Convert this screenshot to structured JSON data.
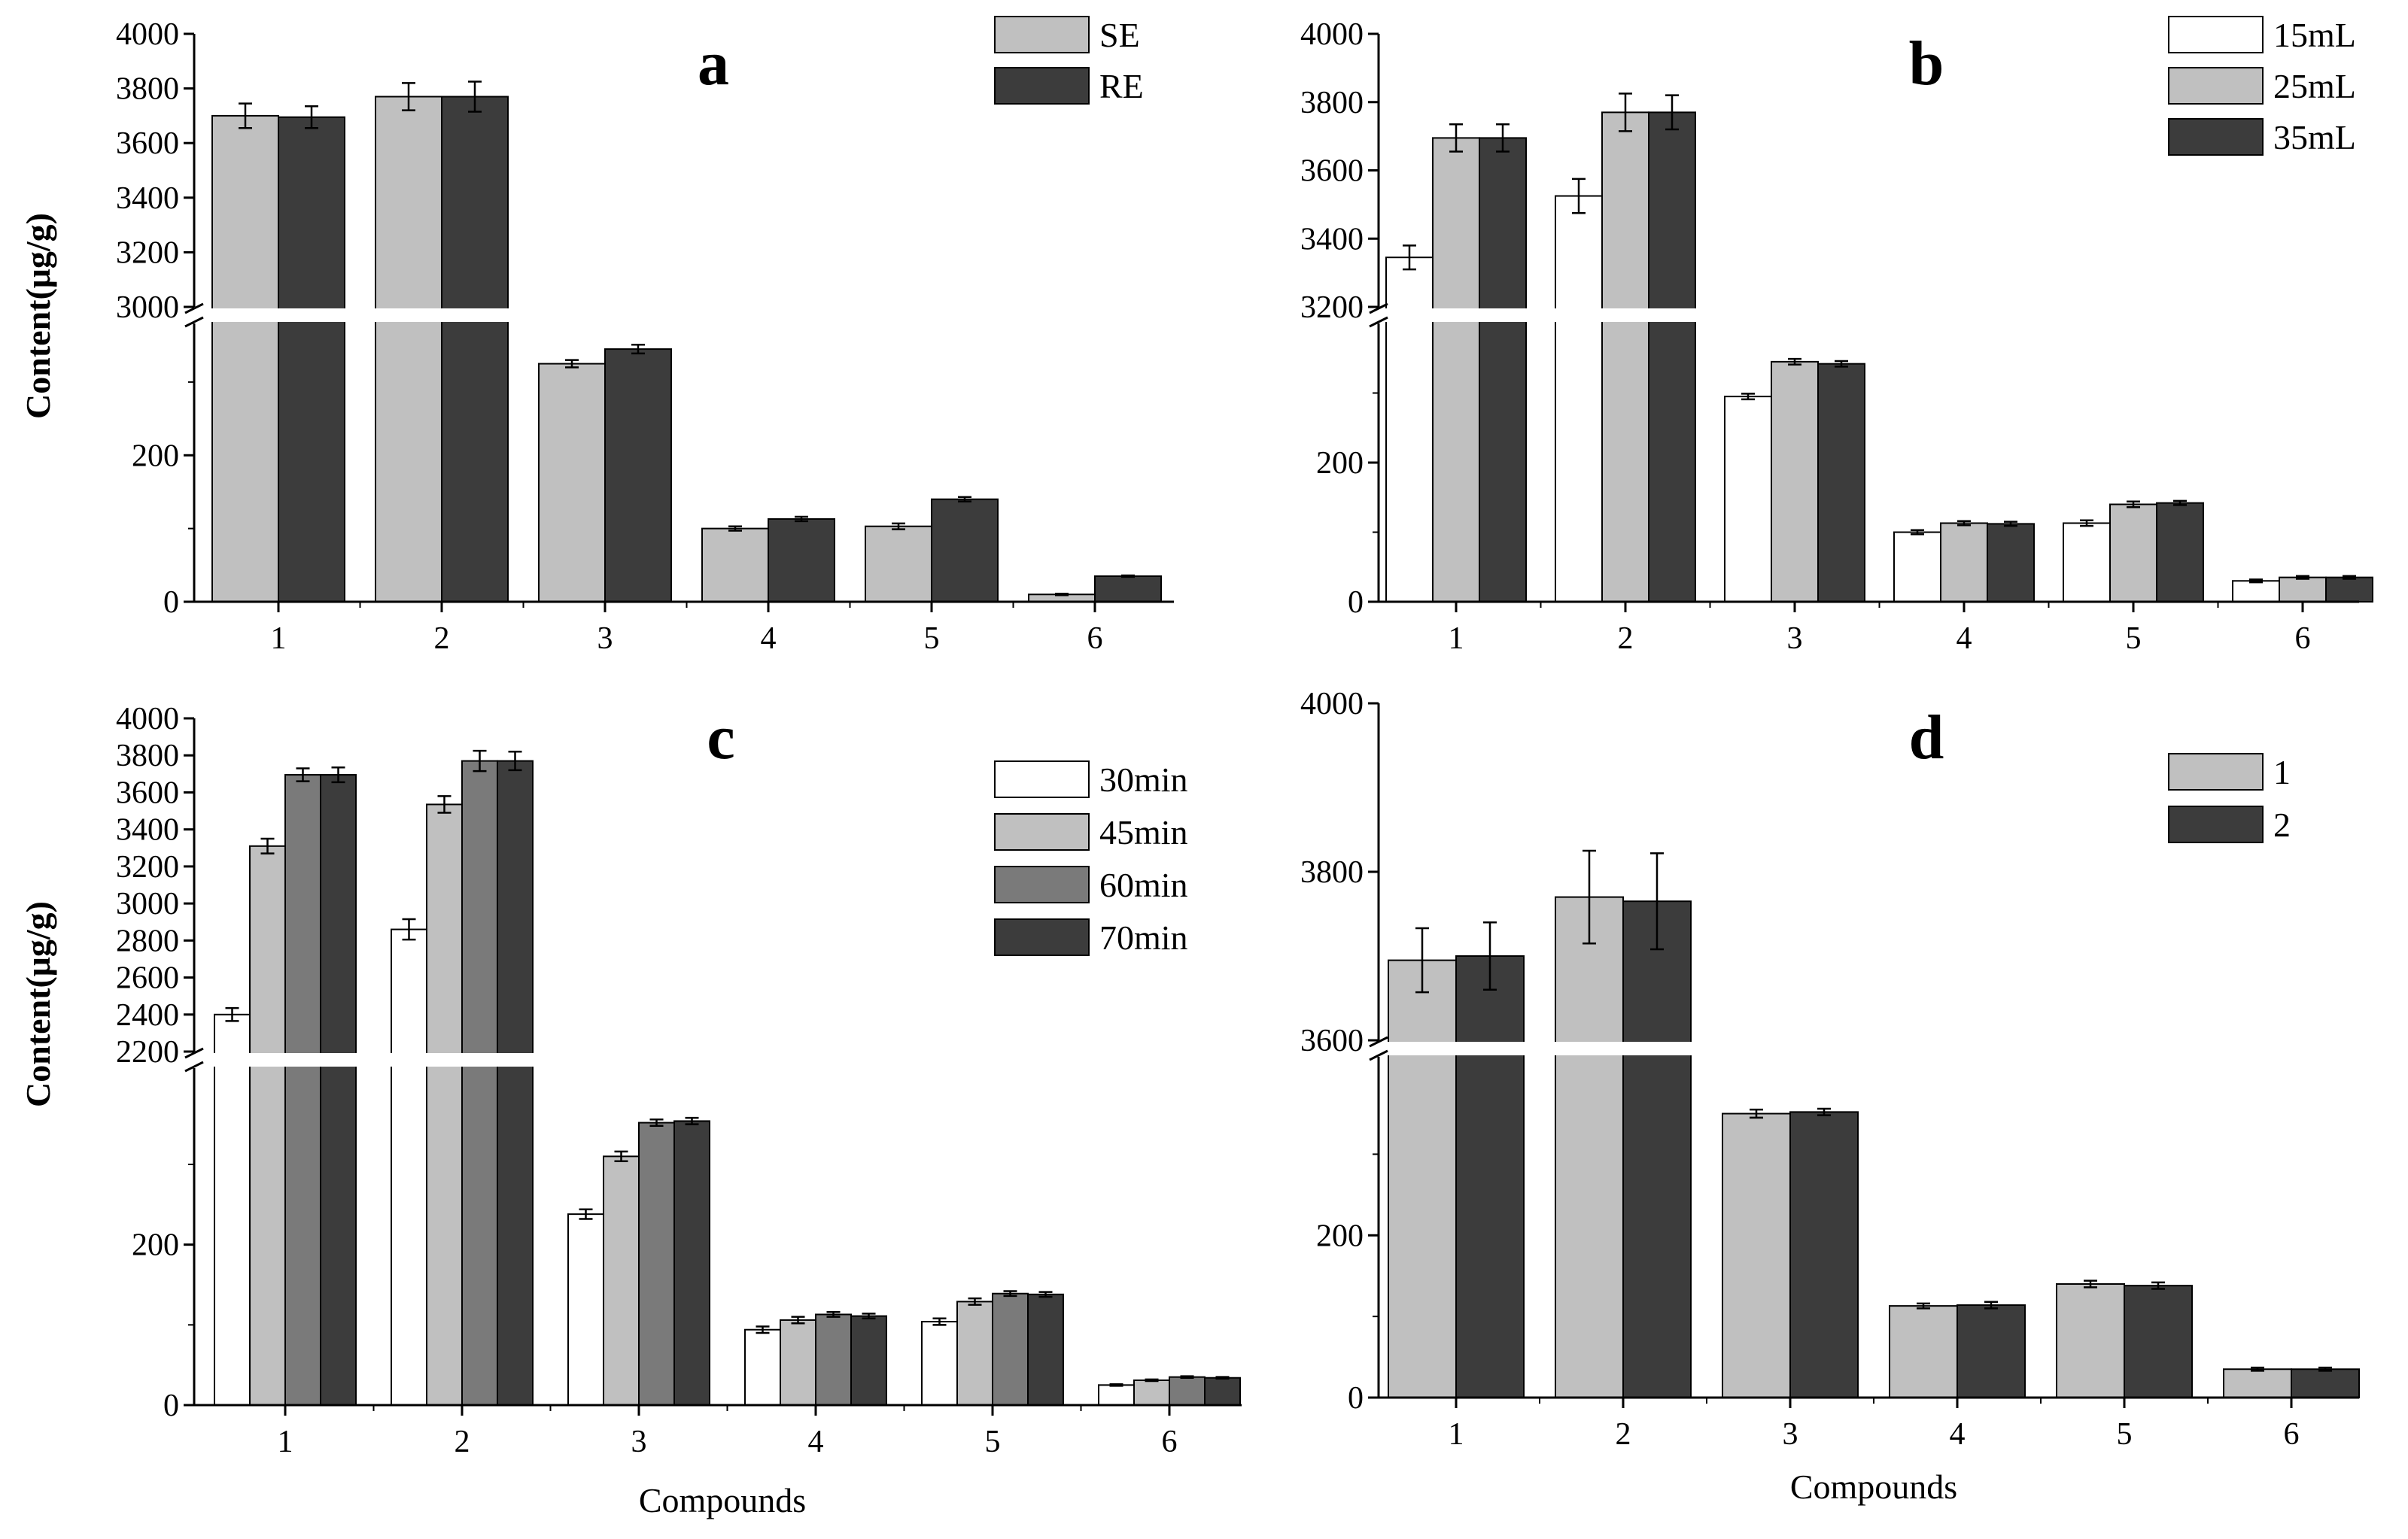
{
  "colors": {
    "white": "#ffffff",
    "light_gray": "#c0c0c0",
    "mid_gray": "#7a7a7a",
    "dark_gray": "#3c3c3c",
    "axis": "#000000"
  },
  "chart_data": [
    {
      "type": "bar",
      "panel": "a",
      "title": "a",
      "xlabel": "",
      "ylabel": "Content(μg/g)",
      "categories": [
        "1",
        "2",
        "3",
        "4",
        "5",
        "6"
      ],
      "axis_break": true,
      "lower_ylim": [
        0,
        380
      ],
      "upper_ylim": [
        3000,
        4000
      ],
      "lower_ticks": [
        0,
        200
      ],
      "upper_ticks": [
        3000,
        3200,
        3400,
        3600,
        3800,
        4000
      ],
      "series": [
        {
          "name": "SE",
          "color": "#c0c0c0",
          "values": [
            3700,
            3770,
            325,
            100,
            103,
            10
          ],
          "errors": [
            45,
            50,
            5,
            3,
            4,
            1
          ]
        },
        {
          "name": "RE",
          "color": "#3c3c3c",
          "values": [
            3695,
            3770,
            345,
            113,
            140,
            35
          ],
          "errors": [
            40,
            55,
            6,
            3,
            3,
            1
          ]
        }
      ]
    },
    {
      "type": "bar",
      "panel": "b",
      "title": "b",
      "xlabel": "",
      "ylabel": "",
      "categories": [
        "1",
        "2",
        "3",
        "4",
        "5",
        "6"
      ],
      "axis_break": true,
      "lower_ylim": [
        0,
        400
      ],
      "upper_ylim": [
        3200,
        4000
      ],
      "lower_ticks": [
        0,
        200
      ],
      "upper_ticks": [
        3200,
        3400,
        3600,
        3800,
        4000
      ],
      "series": [
        {
          "name": "15mL",
          "color": "#ffffff",
          "values": [
            3345,
            3525,
            295,
            100,
            113,
            30
          ],
          "errors": [
            35,
            50,
            4,
            3,
            4,
            2
          ]
        },
        {
          "name": "25mL",
          "color": "#c0c0c0",
          "values": [
            3695,
            3770,
            345,
            113,
            140,
            35
          ],
          "errors": [
            40,
            55,
            4,
            3,
            4,
            2
          ]
        },
        {
          "name": "35mL",
          "color": "#3c3c3c",
          "values": [
            3695,
            3770,
            342,
            112,
            142,
            35
          ],
          "errors": [
            40,
            50,
            4,
            3,
            3,
            2
          ]
        }
      ]
    },
    {
      "type": "bar",
      "panel": "c",
      "title": "c",
      "xlabel": "Compounds",
      "ylabel": "Content(μg/g)",
      "categories": [
        "1",
        "2",
        "3",
        "4",
        "5",
        "6"
      ],
      "axis_break": true,
      "lower_ylim": [
        0,
        420
      ],
      "upper_ylim": [
        2200,
        4000
      ],
      "lower_ticks": [
        0,
        200
      ],
      "upper_ticks": [
        2200,
        2400,
        2600,
        2800,
        3000,
        3200,
        3400,
        3600,
        3800,
        4000
      ],
      "series": [
        {
          "name": "30min",
          "color": "#ffffff",
          "values": [
            2400,
            2860,
            238,
            94,
            104,
            25
          ],
          "errors": [
            35,
            55,
            6,
            4,
            4,
            1
          ]
        },
        {
          "name": "45min",
          "color": "#c0c0c0",
          "values": [
            3310,
            3535,
            310,
            106,
            129,
            31
          ],
          "errors": [
            40,
            45,
            6,
            4,
            4,
            1
          ]
        },
        {
          "name": "60min",
          "color": "#7a7a7a",
          "values": [
            3695,
            3770,
            352,
            113,
            139,
            35
          ],
          "errors": [
            35,
            55,
            4,
            3,
            3,
            1
          ]
        },
        {
          "name": "70min",
          "color": "#3c3c3c",
          "values": [
            3695,
            3770,
            354,
            111,
            138,
            34
          ],
          "errors": [
            40,
            50,
            4,
            3,
            3,
            1
          ]
        }
      ]
    },
    {
      "type": "bar",
      "panel": "d",
      "title": "d",
      "xlabel": "Compounds",
      "ylabel": "",
      "categories": [
        "1",
        "2",
        "3",
        "4",
        "5",
        "6"
      ],
      "axis_break": true,
      "lower_ylim": [
        0,
        420
      ],
      "upper_ylim": [
        3600,
        4000
      ],
      "lower_ticks": [
        0,
        200
      ],
      "upper_ticks": [
        3600,
        3800,
        4000
      ],
      "series": [
        {
          "name": "1",
          "color": "#c0c0c0",
          "values": [
            3695,
            3770,
            350,
            113,
            140,
            35
          ],
          "errors": [
            38,
            55,
            5,
            3,
            4,
            2
          ]
        },
        {
          "name": "2",
          "color": "#3c3c3c",
          "values": [
            3700,
            3765,
            352,
            114,
            138,
            35
          ],
          "errors": [
            40,
            57,
            4,
            4,
            4,
            2
          ]
        }
      ]
    }
  ]
}
